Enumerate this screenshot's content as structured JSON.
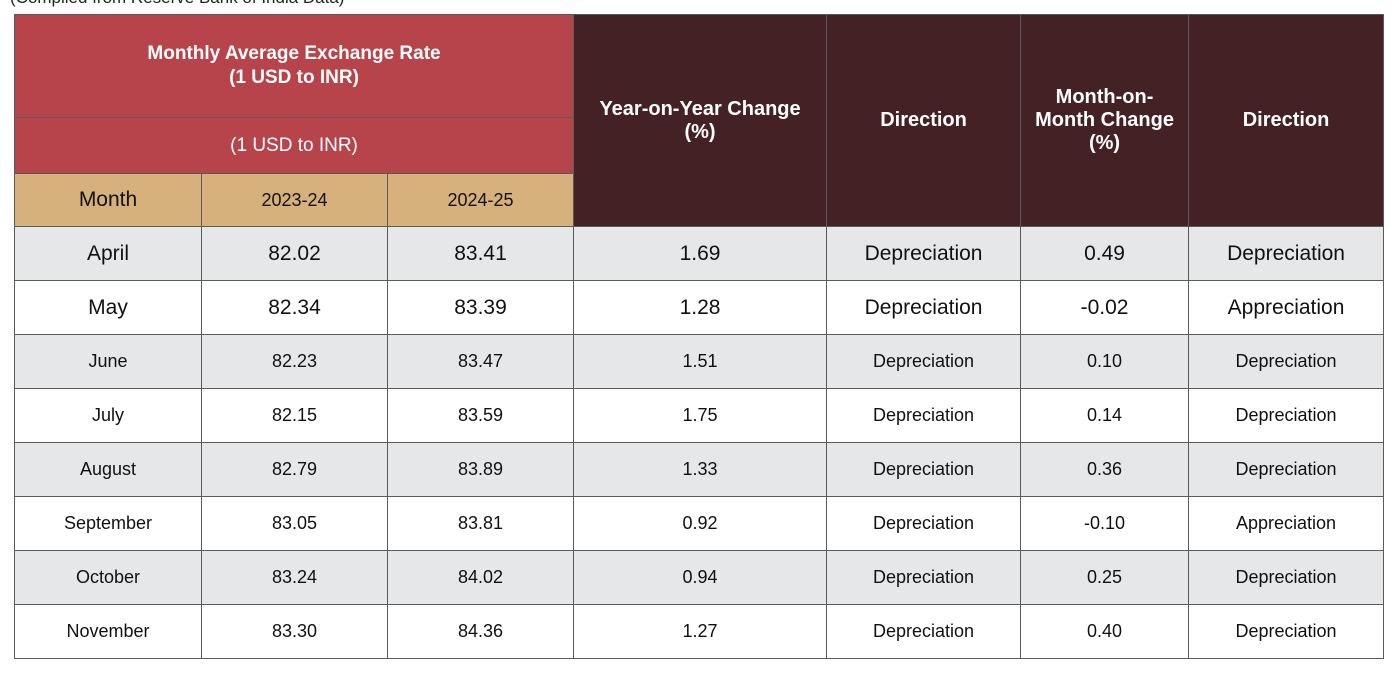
{
  "caption_fragment": "(Compiled from Reserve Bank of India Data)",
  "header": {
    "rate_title_line1": "Monthly Average Exchange Rate",
    "rate_title_line2": "(1 USD to INR)",
    "rate_subtitle": "(1 USD to INR)",
    "month_label": "Month",
    "year1_label": "2023-24",
    "year2_label": "2024-25",
    "yoy_line1": "Year-on-Year Change",
    "yoy_line2": "(%)",
    "direction1": "Direction",
    "mom_line1": "Month-on-",
    "mom_line2": "Month Change",
    "mom_line3": "(%)",
    "direction2": "Direction"
  },
  "rows": [
    {
      "month": "April",
      "y2023": "82.02",
      "y2024": "83.41",
      "yoy": "1.69",
      "yoy_dir": "Depreciation",
      "mom": "0.49",
      "mom_dir": "Depreciation"
    },
    {
      "month": "May",
      "y2023": "82.34",
      "y2024": "83.39",
      "yoy": "1.28",
      "yoy_dir": "Depreciation",
      "mom": "-0.02",
      "mom_dir": "Appreciation"
    },
    {
      "month": "June",
      "y2023": "82.23",
      "y2024": "83.47",
      "yoy": "1.51",
      "yoy_dir": "Depreciation",
      "mom": "0.10",
      "mom_dir": "Depreciation"
    },
    {
      "month": "July",
      "y2023": "82.15",
      "y2024": "83.59",
      "yoy": "1.75",
      "yoy_dir": "Depreciation",
      "mom": "0.14",
      "mom_dir": "Depreciation"
    },
    {
      "month": "August",
      "y2023": "82.79",
      "y2024": "83.89",
      "yoy": "1.33",
      "yoy_dir": "Depreciation",
      "mom": "0.36",
      "mom_dir": "Depreciation"
    },
    {
      "month": "September",
      "y2023": "83.05",
      "y2024": "83.81",
      "yoy": "0.92",
      "yoy_dir": "Depreciation",
      "mom": "-0.10",
      "mom_dir": "Appreciation"
    },
    {
      "month": "October",
      "y2023": "83.24",
      "y2024": "84.02",
      "yoy": "0.94",
      "yoy_dir": "Depreciation",
      "mom": "0.25",
      "mom_dir": "Depreciation"
    },
    {
      "month": "November",
      "y2023": "83.30",
      "y2024": "84.36",
      "yoy": "1.27",
      "yoy_dir": "Depreciation",
      "mom": "0.40",
      "mom_dir": "Depreciation"
    }
  ],
  "colors": {
    "header_red": "#b7434b",
    "header_dark": "#432125",
    "header_tan": "#d7b17b",
    "row_shade": "#e6e7e8"
  }
}
